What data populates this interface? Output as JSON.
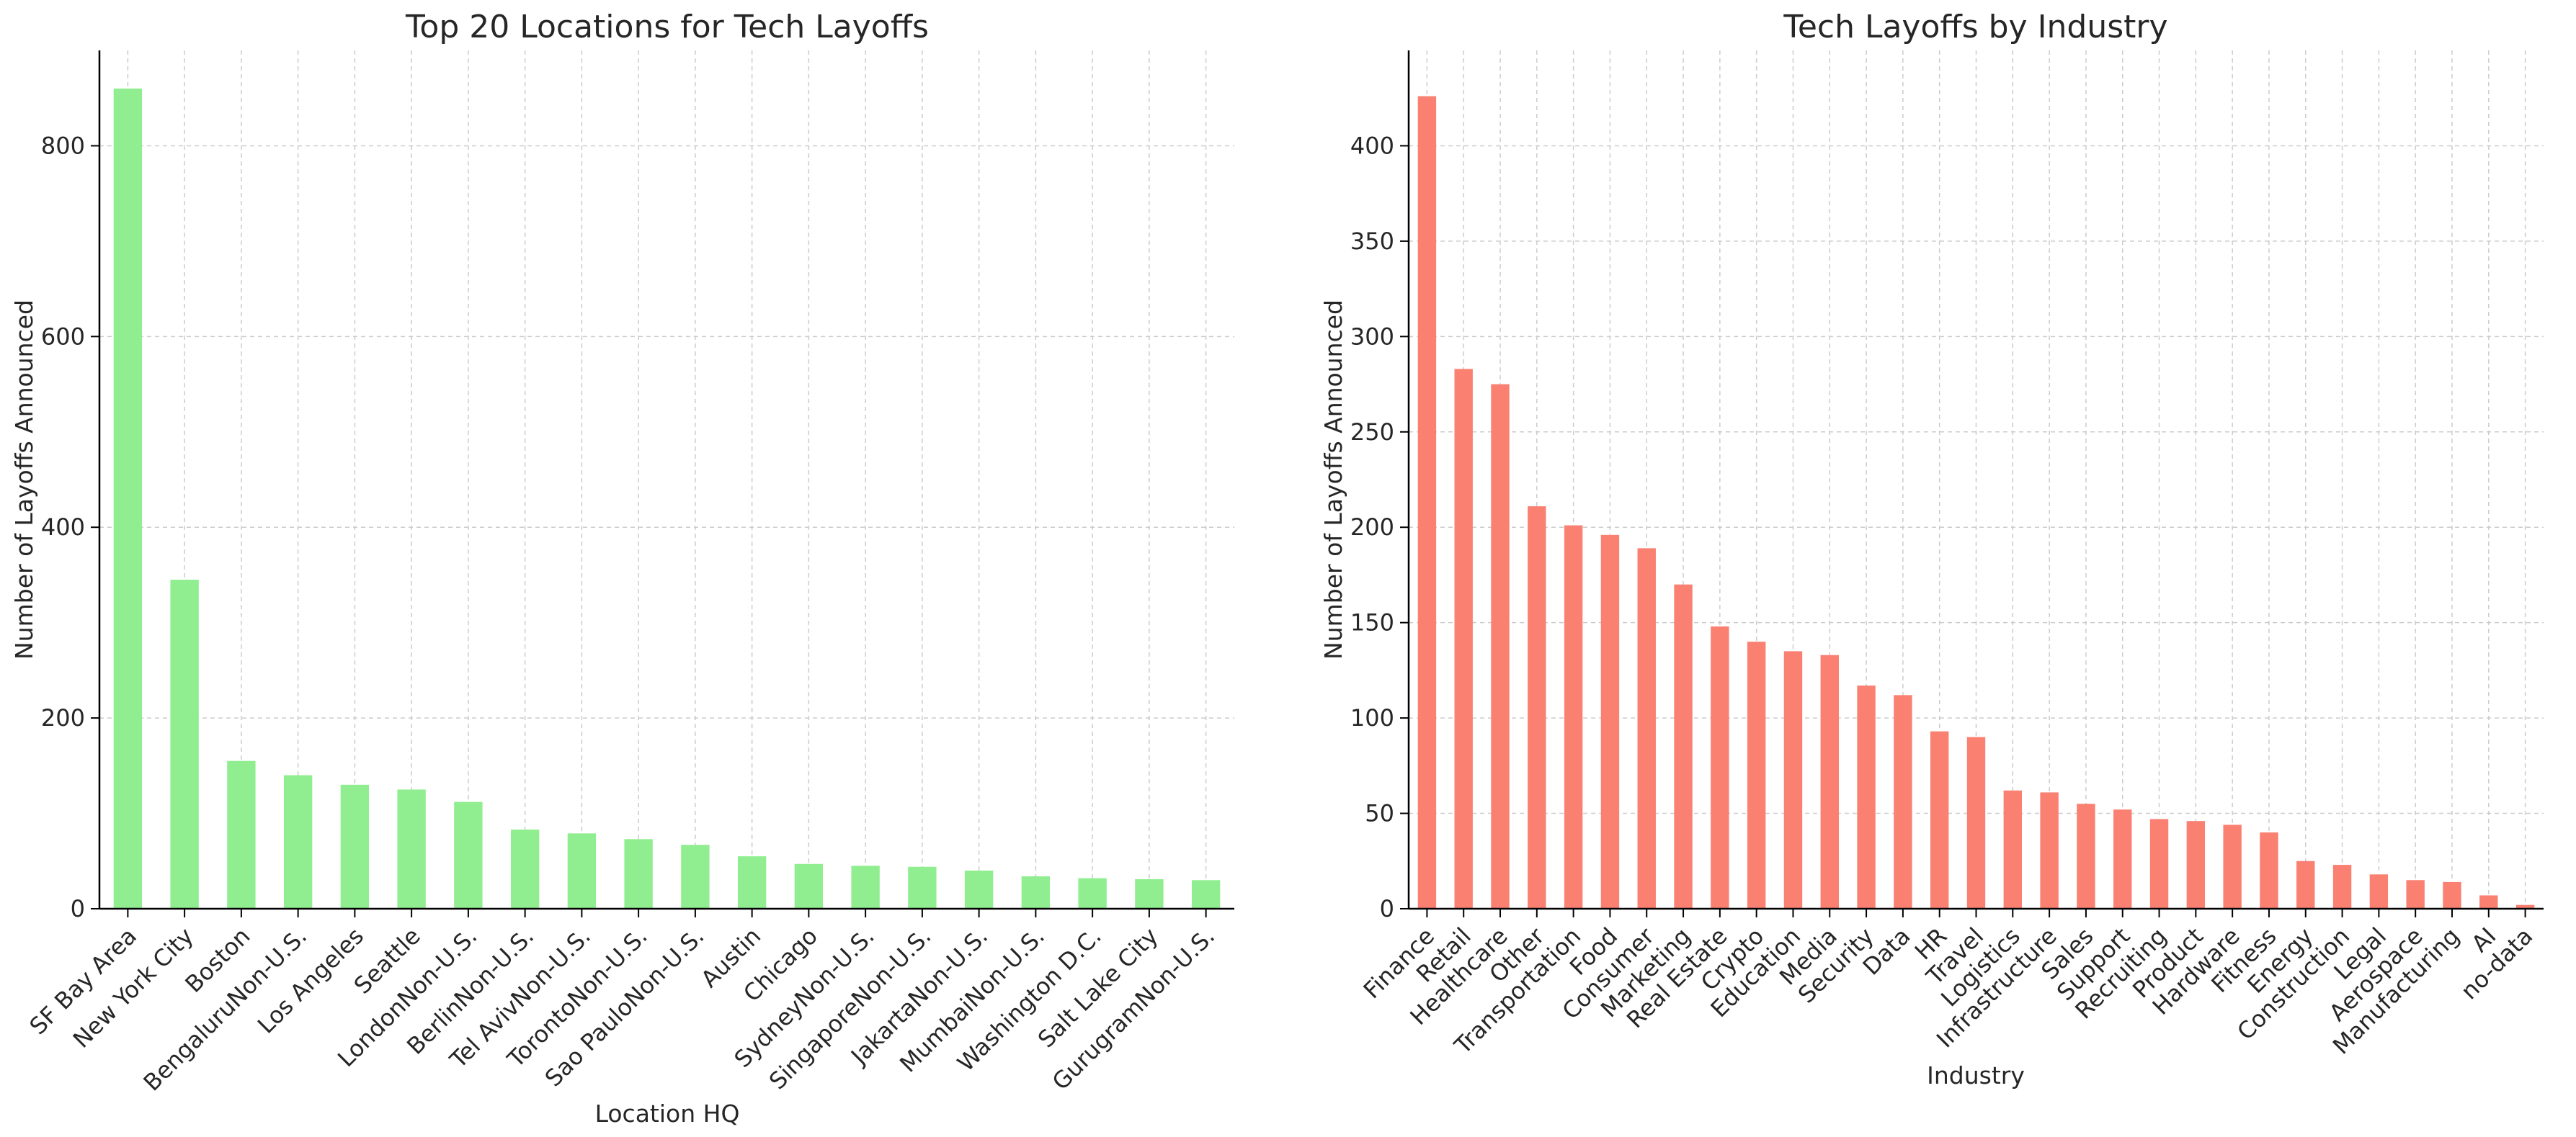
{
  "colors": {
    "chart1_bar": "#90ee90",
    "chart2_bar": "#fa8072",
    "grid": "#cccccc",
    "axis": "#000000",
    "text": "#262626"
  },
  "chart_data": [
    {
      "type": "bar",
      "title": "Top 20 Locations for Tech Layoffs",
      "xlabel": "Location HQ",
      "ylabel": "Number of Layoffs Announced",
      "categories": [
        "SF Bay Area",
        "New York City",
        "Boston",
        "BengaluruNon-U.S.",
        "Los Angeles",
        "Seattle",
        "LondonNon-U.S.",
        "BerlinNon-U.S.",
        "Tel AvivNon-U.S.",
        "TorontoNon-U.S.",
        "Sao PauloNon-U.S.",
        "Austin",
        "Chicago",
        "SydneyNon-U.S.",
        "SingaporeNon-U.S.",
        "JakartaNon-U.S.",
        "MumbaiNon-U.S.",
        "Washington D.C.",
        "Salt Lake City",
        "GurugramNon-U.S."
      ],
      "values": [
        860,
        345,
        155,
        140,
        130,
        125,
        112,
        83,
        79,
        73,
        67,
        55,
        47,
        45,
        44,
        40,
        34,
        32,
        31,
        30
      ],
      "ylim": [
        0,
        900
      ],
      "yticks": [
        0,
        200,
        400,
        600,
        800
      ],
      "grid": true,
      "legend": "none"
    },
    {
      "type": "bar",
      "title": "Tech Layoffs by Industry",
      "xlabel": "Industry",
      "ylabel": "Number of Layoffs Announced",
      "categories": [
        "Finance",
        "Retail",
        "Healthcare",
        "Other",
        "Transportation",
        "Food",
        "Consumer",
        "Marketing",
        "Real Estate",
        "Crypto",
        "Education",
        "Media",
        "Security",
        "Data",
        "HR",
        "Travel",
        "Logistics",
        "Infrastructure",
        "Sales",
        "Support",
        "Recruiting",
        "Product",
        "Hardware",
        "Fitness",
        "Energy",
        "Construction",
        "Legal",
        "Aerospace",
        "Manufacturing",
        "AI",
        "no-data"
      ],
      "values": [
        426,
        283,
        275,
        211,
        201,
        196,
        189,
        170,
        148,
        140,
        135,
        133,
        117,
        112,
        93,
        90,
        62,
        61,
        55,
        52,
        47,
        46,
        44,
        40,
        25,
        23,
        18,
        15,
        14,
        7,
        2
      ],
      "ylim": [
        0,
        450
      ],
      "yticks": [
        0,
        50,
        100,
        150,
        200,
        250,
        300,
        350,
        400
      ],
      "grid": true,
      "legend": "none"
    }
  ]
}
